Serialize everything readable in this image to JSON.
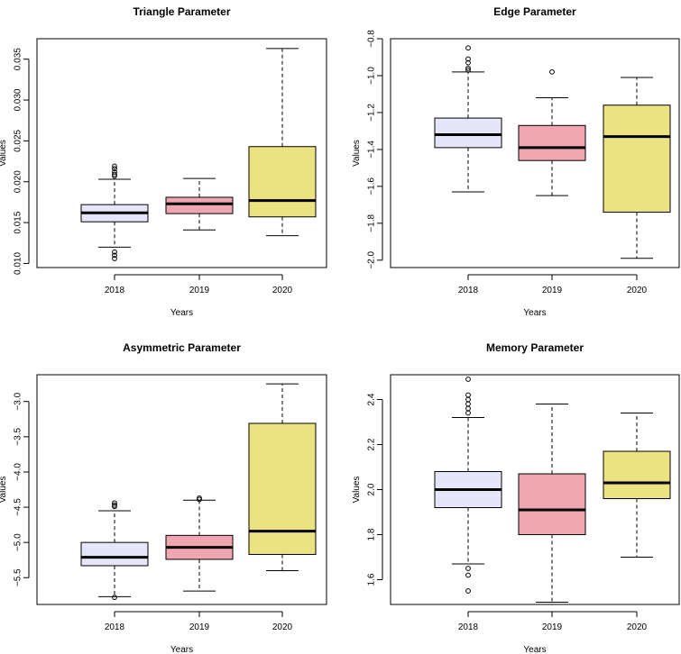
{
  "chart_data": [
    {
      "type": "boxplot",
      "title": "Triangle Parameter",
      "xlabel": "Years",
      "ylabel": "Values",
      "categories": [
        "2018",
        "2019",
        "2020"
      ],
      "ylim": [
        0.0095,
        0.0375
      ],
      "yticks": [
        0.01,
        0.015,
        0.02,
        0.025,
        0.03,
        0.035
      ],
      "ytick_labels": [
        "0.010",
        "0.015",
        "0.020",
        "0.025",
        "0.030",
        "0.035"
      ],
      "boxes": [
        {
          "category": "2018",
          "color": "#e6e6fa",
          "whisker_low": 0.012,
          "q1": 0.0151,
          "median": 0.0162,
          "q3": 0.0172,
          "whisker_high": 0.0203,
          "outliers": [
            0.0219,
            0.0216,
            0.0212,
            0.0209,
            0.0207,
            0.0114,
            0.011,
            0.0106
          ]
        },
        {
          "category": "2019",
          "color": "#f0a6b0",
          "whisker_low": 0.0141,
          "q1": 0.0161,
          "median": 0.0173,
          "q3": 0.0181,
          "whisker_high": 0.0204,
          "outliers": []
        },
        {
          "category": "2020",
          "color": "#ebe281",
          "whisker_low": 0.0134,
          "q1": 0.0157,
          "median": 0.0177,
          "q3": 0.0243,
          "whisker_high": 0.0363,
          "outliers": []
        }
      ]
    },
    {
      "type": "boxplot",
      "title": "Edge Parameter",
      "xlabel": "Years",
      "ylabel": "Values",
      "categories": [
        "2018",
        "2019",
        "2020"
      ],
      "ylim": [
        -2.04,
        -0.8
      ],
      "yticks": [
        -2.0,
        -1.8,
        -1.6,
        -1.4,
        -1.2,
        -1.0,
        -0.8
      ],
      "ytick_labels": [
        "−2.0",
        "−1.8",
        "−1.6",
        "−1.4",
        "−1.2",
        "−1.0",
        "−0.8"
      ],
      "boxes": [
        {
          "category": "2018",
          "color": "#e6e6fa",
          "whisker_low": -1.63,
          "q1": -1.39,
          "median": -1.32,
          "q3": -1.23,
          "whisker_high": -0.98,
          "outliers": [
            -0.85,
            -0.91,
            -0.93,
            -0.96,
            -0.97
          ]
        },
        {
          "category": "2019",
          "color": "#f0a6b0",
          "whisker_low": -1.65,
          "q1": -1.46,
          "median": -1.39,
          "q3": -1.27,
          "whisker_high": -1.12,
          "outliers": [
            -0.98
          ]
        },
        {
          "category": "2020",
          "color": "#ebe281",
          "whisker_low": -1.99,
          "q1": -1.74,
          "median": -1.33,
          "q3": -1.16,
          "whisker_high": -1.01,
          "outliers": []
        }
      ]
    },
    {
      "type": "boxplot",
      "title": "Asymmetric Parameter",
      "xlabel": "Years",
      "ylabel": "Values",
      "categories": [
        "2018",
        "2019",
        "2020"
      ],
      "ylim": [
        -5.88,
        -2.62
      ],
      "yticks": [
        -5.5,
        -5.0,
        -4.5,
        -4.0,
        -3.5,
        -3.0
      ],
      "ytick_labels": [
        "−5.5",
        "−5.0",
        "−4.5",
        "−4.0",
        "−3.5",
        "−3.0"
      ],
      "boxes": [
        {
          "category": "2018",
          "color": "#e6e6fa",
          "whisker_low": -5.77,
          "q1": -5.33,
          "median": -5.21,
          "q3": -5.0,
          "whisker_high": -4.55,
          "outliers": [
            -4.44,
            -4.47,
            -4.49,
            -5.78
          ]
        },
        {
          "category": "2019",
          "color": "#f0a6b0",
          "whisker_low": -5.69,
          "q1": -5.24,
          "median": -5.07,
          "q3": -4.9,
          "whisker_high": -4.4,
          "outliers": [
            -4.37,
            -4.39
          ]
        },
        {
          "category": "2020",
          "color": "#ebe281",
          "whisker_low": -5.4,
          "q1": -5.17,
          "median": -4.84,
          "q3": -3.31,
          "whisker_high": -2.75,
          "outliers": []
        }
      ]
    },
    {
      "type": "boxplot",
      "title": "Memory Parameter",
      "xlabel": "Years",
      "ylabel": "Values",
      "categories": [
        "2018",
        "2019",
        "2020"
      ],
      "ylim": [
        1.49,
        2.51
      ],
      "yticks": [
        1.6,
        1.8,
        2.0,
        2.2,
        2.4
      ],
      "ytick_labels": [
        "1.6",
        "1.8",
        "2.0",
        "2.2",
        "2.4"
      ],
      "boxes": [
        {
          "category": "2018",
          "color": "#e6e6fa",
          "whisker_low": 1.67,
          "q1": 1.92,
          "median": 2.0,
          "q3": 2.08,
          "whisker_high": 2.32,
          "outliers": [
            2.49,
            2.42,
            2.4,
            2.38,
            2.36,
            2.34,
            1.65,
            1.62,
            1.55
          ]
        },
        {
          "category": "2019",
          "color": "#f0a6b0",
          "whisker_low": 1.5,
          "q1": 1.8,
          "median": 1.91,
          "q3": 2.07,
          "whisker_high": 2.38,
          "outliers": []
        },
        {
          "category": "2020",
          "color": "#ebe281",
          "whisker_low": 1.7,
          "q1": 1.96,
          "median": 2.03,
          "q3": 2.17,
          "whisker_high": 2.34,
          "outliers": []
        }
      ]
    }
  ]
}
